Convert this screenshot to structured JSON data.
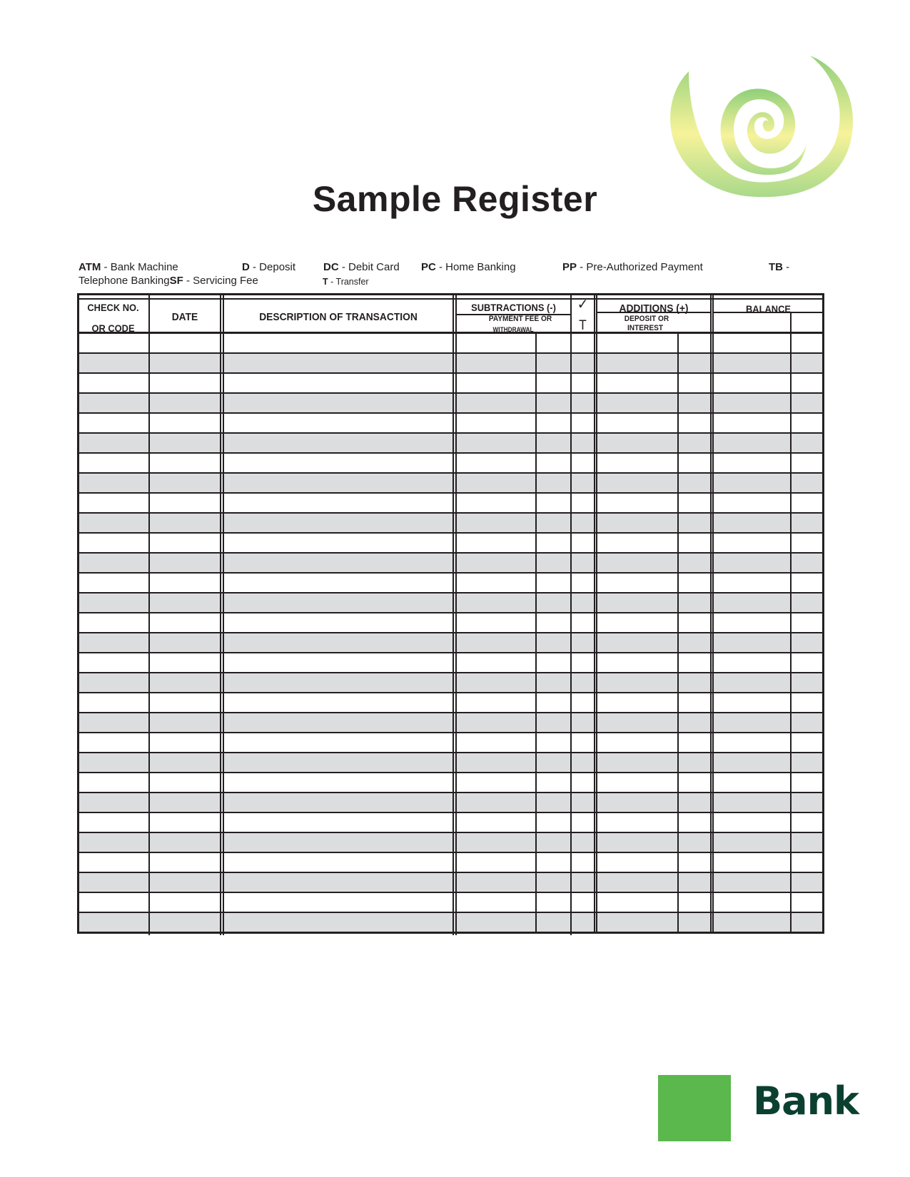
{
  "title": "Sample Register",
  "legend": {
    "atm_code": "ATM",
    "atm_label": " - Bank Machine",
    "d_code": "D",
    "d_label": " - Deposit",
    "dc_code": "DC",
    "dc_label": " - Debit Card",
    "pc_code": "PC",
    "pc_label": " - Home Banking",
    "pp_code": "PP",
    "pp_label": " - Pre-Authorized Payment",
    "tb_code": "TB",
    "tb_label": " -",
    "tb_label_cont": "Telephone Banking",
    "sf_code": "SF",
    "sf_label": " - Servicing Fee",
    "t_code": "T",
    "t_label": " - Transfer"
  },
  "table": {
    "headers": {
      "check_no_line1": "CHECK NO.",
      "check_no_line2": "OR CODE",
      "date": "DATE",
      "description": "DESCRIPTION OF TRANSACTION",
      "subtractions": "SUBTRACTIONS (-)",
      "subtractions_sub_line1": "PAYMENT FEE OR",
      "subtractions_sub_line2": "WITHDRAWAL",
      "check_mark": "✓",
      "check_t": "T",
      "additions": "ADDITIONS (+)",
      "additions_sub_line1": "DEPOSIT OR",
      "additions_sub_line2": "INTEREST",
      "balance": "BALANCE"
    },
    "row_shading_color": "#dcdddf"
  },
  "logo": {
    "spiral_colors": [
      "#8fcf7a",
      "#f7f39a",
      "#b8dd8c"
    ],
    "bank_square_color": "#5bb84d",
    "bank_text": "Bank",
    "bank_text_color": "#0b4030"
  }
}
